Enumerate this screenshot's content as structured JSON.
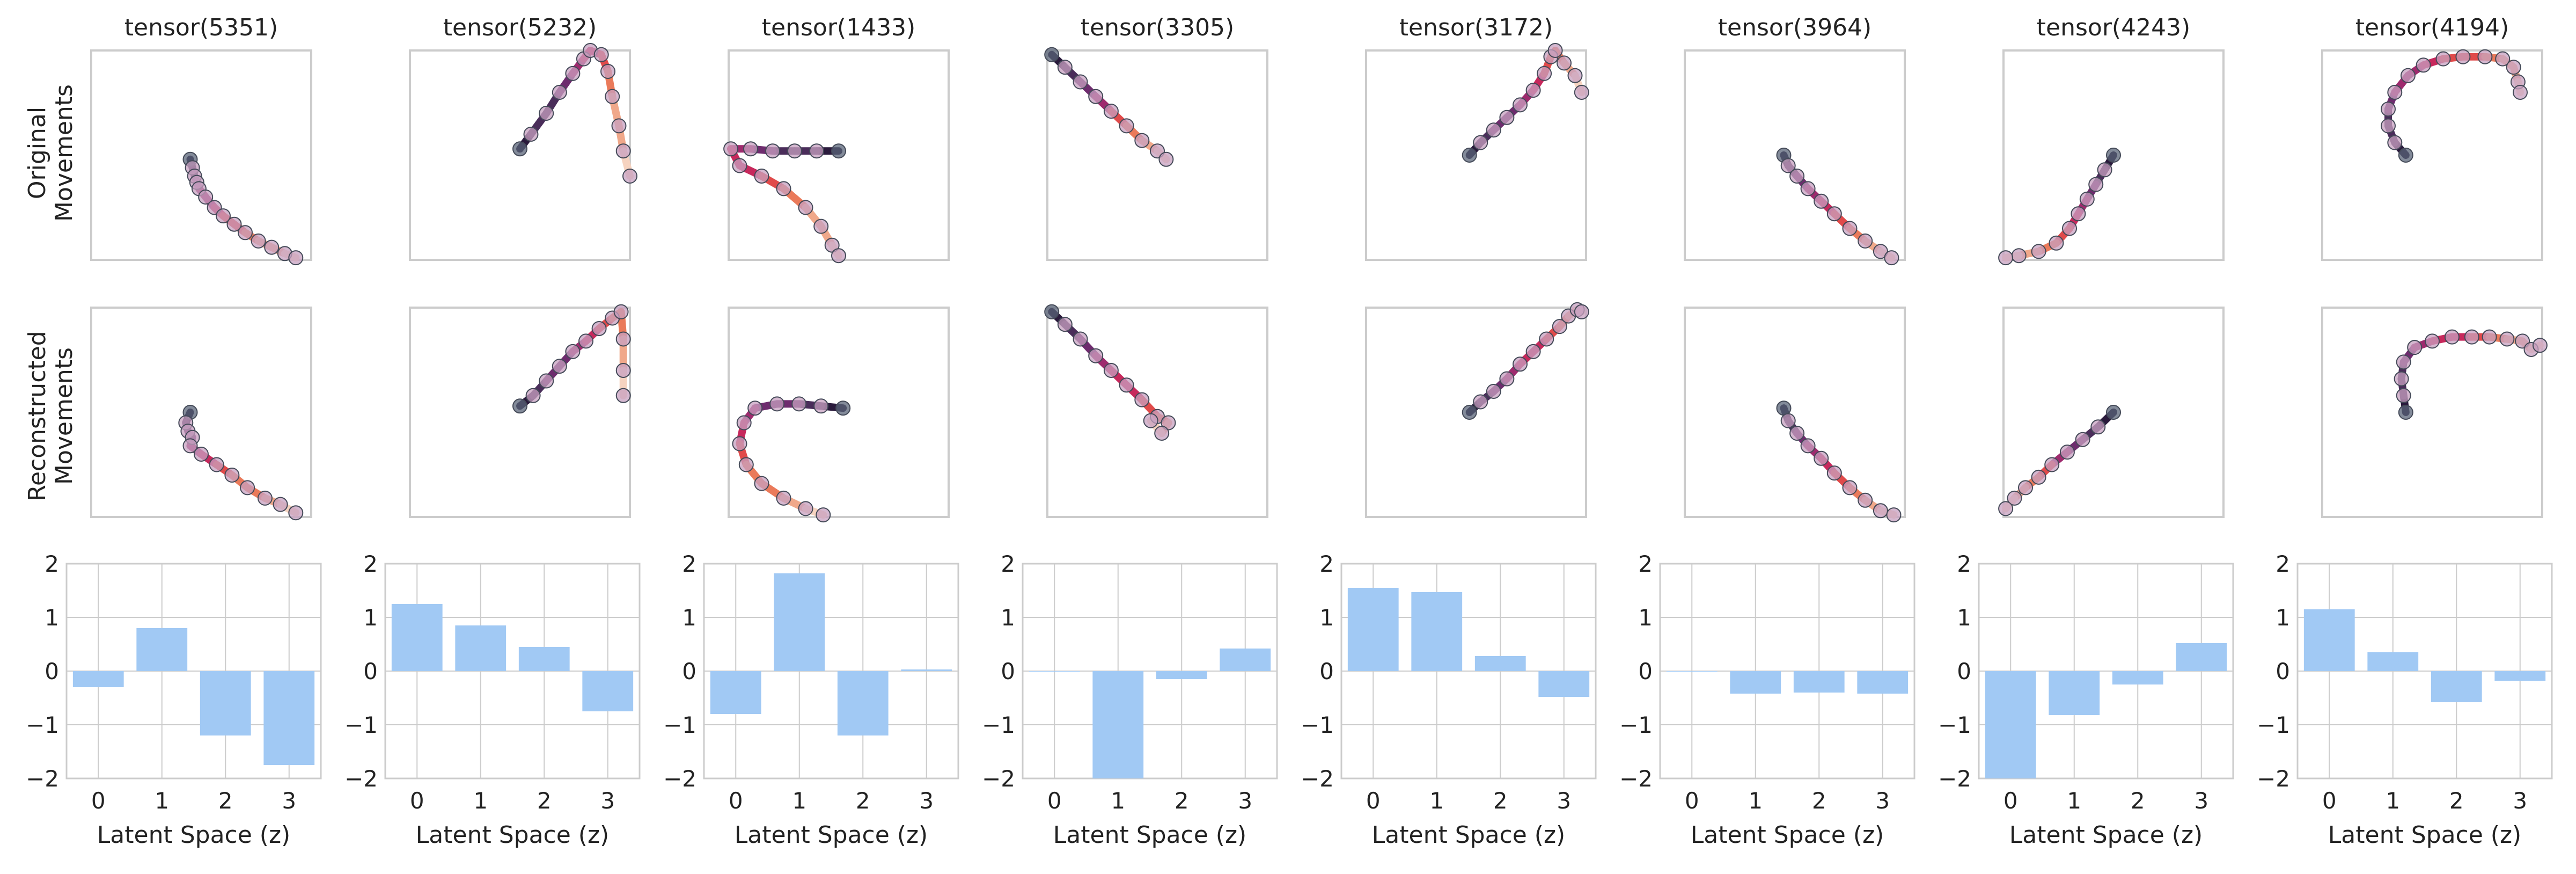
{
  "figure": {
    "row_labels": [
      [
        "Original",
        "Movements"
      ],
      [
        "Reconstructed",
        "Movements"
      ]
    ],
    "columns": [
      "tensor(5351)",
      "tensor(5232)",
      "tensor(1433)",
      "tensor(3305)",
      "tensor(3172)",
      "tensor(3964)",
      "tensor(4243)",
      "tensor(4194)"
    ]
  },
  "colors": {
    "bar": "#a1c9f4",
    "grid": "#cccccc",
    "frame": "#cccccc",
    "trajectory_palette": [
      "#2a1a3c",
      "#4a2d5a",
      "#6e2c6e",
      "#9e2a6e",
      "#c7285c",
      "#e04a4a",
      "#ea7a5a",
      "#f0a88a",
      "#f6d3c0"
    ]
  },
  "chart_data": [
    {
      "type": "line",
      "title": "tensor(5351) movements",
      "original": [
        [
          0.45,
          0.52
        ],
        [
          0.46,
          0.56
        ],
        [
          0.47,
          0.6
        ],
        [
          0.48,
          0.63
        ],
        [
          0.49,
          0.66
        ],
        [
          0.52,
          0.7
        ],
        [
          0.56,
          0.75
        ],
        [
          0.6,
          0.79
        ],
        [
          0.65,
          0.83
        ],
        [
          0.7,
          0.87
        ],
        [
          0.76,
          0.91
        ],
        [
          0.82,
          0.94
        ],
        [
          0.88,
          0.97
        ],
        [
          0.93,
          0.99
        ]
      ],
      "reconstructed": [
        [
          0.45,
          0.5
        ],
        [
          0.43,
          0.55
        ],
        [
          0.44,
          0.59
        ],
        [
          0.46,
          0.62
        ],
        [
          0.45,
          0.66
        ],
        [
          0.5,
          0.7
        ],
        [
          0.57,
          0.75
        ],
        [
          0.64,
          0.8
        ],
        [
          0.71,
          0.86
        ],
        [
          0.79,
          0.91
        ],
        [
          0.86,
          0.94
        ],
        [
          0.93,
          0.98
        ]
      ]
    },
    {
      "type": "line",
      "title": "tensor(5232) movements",
      "original": [
        [
          0.5,
          0.47
        ],
        [
          0.55,
          0.4
        ],
        [
          0.62,
          0.3
        ],
        [
          0.68,
          0.2
        ],
        [
          0.74,
          0.11
        ],
        [
          0.79,
          0.04
        ],
        [
          0.82,
          0.0
        ],
        [
          0.87,
          0.02
        ],
        [
          0.9,
          0.1
        ],
        [
          0.92,
          0.22
        ],
        [
          0.95,
          0.36
        ],
        [
          0.97,
          0.48
        ],
        [
          1.0,
          0.6
        ]
      ],
      "reconstructed": [
        [
          0.5,
          0.47
        ],
        [
          0.56,
          0.42
        ],
        [
          0.62,
          0.35
        ],
        [
          0.68,
          0.28
        ],
        [
          0.74,
          0.21
        ],
        [
          0.8,
          0.16
        ],
        [
          0.86,
          0.1
        ],
        [
          0.92,
          0.05
        ],
        [
          0.96,
          0.02
        ],
        [
          0.97,
          0.15
        ],
        [
          0.97,
          0.3
        ],
        [
          0.97,
          0.42
        ]
      ]
    },
    {
      "type": "line",
      "title": "tensor(1433) movements",
      "original": [
        [
          0.5,
          0.48
        ],
        [
          0.4,
          0.48
        ],
        [
          0.3,
          0.48
        ],
        [
          0.2,
          0.48
        ],
        [
          0.1,
          0.47
        ],
        [
          0.01,
          0.47
        ],
        [
          0.05,
          0.55
        ],
        [
          0.15,
          0.6
        ],
        [
          0.25,
          0.66
        ],
        [
          0.35,
          0.75
        ],
        [
          0.42,
          0.84
        ],
        [
          0.47,
          0.93
        ],
        [
          0.5,
          0.98
        ]
      ],
      "reconstructed": [
        [
          0.52,
          0.48
        ],
        [
          0.42,
          0.47
        ],
        [
          0.32,
          0.46
        ],
        [
          0.22,
          0.46
        ],
        [
          0.12,
          0.48
        ],
        [
          0.07,
          0.55
        ],
        [
          0.05,
          0.65
        ],
        [
          0.08,
          0.75
        ],
        [
          0.15,
          0.84
        ],
        [
          0.25,
          0.91
        ],
        [
          0.35,
          0.96
        ],
        [
          0.43,
          0.99
        ]
      ]
    },
    {
      "type": "line",
      "title": "tensor(3305) movements",
      "original": [
        [
          0.02,
          0.02
        ],
        [
          0.08,
          0.08
        ],
        [
          0.15,
          0.15
        ],
        [
          0.22,
          0.22
        ],
        [
          0.29,
          0.29
        ],
        [
          0.36,
          0.36
        ],
        [
          0.43,
          0.43
        ],
        [
          0.5,
          0.48
        ],
        [
          0.54,
          0.52
        ]
      ],
      "reconstructed": [
        [
          0.02,
          0.02
        ],
        [
          0.08,
          0.08
        ],
        [
          0.15,
          0.15
        ],
        [
          0.22,
          0.23
        ],
        [
          0.29,
          0.3
        ],
        [
          0.36,
          0.37
        ],
        [
          0.43,
          0.44
        ],
        [
          0.5,
          0.52
        ],
        [
          0.55,
          0.55
        ],
        [
          0.52,
          0.6
        ],
        [
          0.47,
          0.54
        ]
      ]
    },
    {
      "type": "line",
      "title": "tensor(3172) movements",
      "original": [
        [
          0.47,
          0.5
        ],
        [
          0.52,
          0.44
        ],
        [
          0.58,
          0.38
        ],
        [
          0.64,
          0.32
        ],
        [
          0.7,
          0.26
        ],
        [
          0.76,
          0.19
        ],
        [
          0.81,
          0.11
        ],
        [
          0.84,
          0.03
        ],
        [
          0.86,
          0.0
        ],
        [
          0.9,
          0.06
        ],
        [
          0.95,
          0.12
        ],
        [
          0.98,
          0.2
        ]
      ],
      "reconstructed": [
        [
          0.47,
          0.5
        ],
        [
          0.52,
          0.45
        ],
        [
          0.58,
          0.4
        ],
        [
          0.64,
          0.34
        ],
        [
          0.7,
          0.27
        ],
        [
          0.76,
          0.21
        ],
        [
          0.82,
          0.15
        ],
        [
          0.88,
          0.09
        ],
        [
          0.92,
          0.04
        ],
        [
          0.96,
          0.01
        ],
        [
          0.98,
          0.02
        ]
      ]
    },
    {
      "type": "line",
      "title": "tensor(3964) movements",
      "original": [
        [
          0.45,
          0.5
        ],
        [
          0.47,
          0.55
        ],
        [
          0.51,
          0.6
        ],
        [
          0.56,
          0.66
        ],
        [
          0.62,
          0.72
        ],
        [
          0.68,
          0.78
        ],
        [
          0.75,
          0.85
        ],
        [
          0.82,
          0.91
        ],
        [
          0.89,
          0.96
        ],
        [
          0.94,
          0.99
        ]
      ],
      "reconstructed": [
        [
          0.45,
          0.48
        ],
        [
          0.47,
          0.54
        ],
        [
          0.51,
          0.6
        ],
        [
          0.56,
          0.66
        ],
        [
          0.62,
          0.72
        ],
        [
          0.68,
          0.79
        ],
        [
          0.75,
          0.86
        ],
        [
          0.82,
          0.92
        ],
        [
          0.89,
          0.97
        ],
        [
          0.95,
          0.99
        ]
      ]
    },
    {
      "type": "line",
      "title": "tensor(4243) movements",
      "original": [
        [
          0.5,
          0.5
        ],
        [
          0.46,
          0.57
        ],
        [
          0.42,
          0.64
        ],
        [
          0.38,
          0.71
        ],
        [
          0.34,
          0.78
        ],
        [
          0.3,
          0.85
        ],
        [
          0.24,
          0.92
        ],
        [
          0.16,
          0.96
        ],
        [
          0.07,
          0.98
        ],
        [
          0.01,
          0.99
        ]
      ],
      "reconstructed": [
        [
          0.5,
          0.5
        ],
        [
          0.43,
          0.57
        ],
        [
          0.36,
          0.63
        ],
        [
          0.29,
          0.69
        ],
        [
          0.22,
          0.75
        ],
        [
          0.16,
          0.81
        ],
        [
          0.1,
          0.86
        ],
        [
          0.05,
          0.91
        ],
        [
          0.01,
          0.96
        ]
      ]
    },
    {
      "type": "line",
      "title": "tensor(4194) movements",
      "original": [
        [
          0.38,
          0.5
        ],
        [
          0.33,
          0.44
        ],
        [
          0.3,
          0.36
        ],
        [
          0.3,
          0.28
        ],
        [
          0.33,
          0.2
        ],
        [
          0.39,
          0.12
        ],
        [
          0.46,
          0.07
        ],
        [
          0.55,
          0.04
        ],
        [
          0.64,
          0.03
        ],
        [
          0.74,
          0.03
        ],
        [
          0.82,
          0.04
        ],
        [
          0.87,
          0.08
        ],
        [
          0.89,
          0.15
        ],
        [
          0.9,
          0.2
        ]
      ],
      "reconstructed": [
        [
          0.38,
          0.5
        ],
        [
          0.37,
          0.42
        ],
        [
          0.36,
          0.34
        ],
        [
          0.37,
          0.26
        ],
        [
          0.42,
          0.19
        ],
        [
          0.5,
          0.16
        ],
        [
          0.59,
          0.14
        ],
        [
          0.68,
          0.14
        ],
        [
          0.76,
          0.14
        ],
        [
          0.84,
          0.15
        ],
        [
          0.91,
          0.16
        ],
        [
          0.95,
          0.2
        ],
        [
          0.99,
          0.18
        ]
      ]
    },
    {
      "type": "bar",
      "title": "Latent Space (z) — tensor(5351)",
      "xlabel": "Latent Space (z)",
      "categories": [
        "0",
        "1",
        "2",
        "3"
      ],
      "values": [
        -0.3,
        0.8,
        -1.2,
        -1.75
      ],
      "ylim": [
        -2,
        2
      ],
      "yticks": [
        "2",
        "1",
        "0",
        "−1",
        "−2"
      ]
    },
    {
      "type": "bar",
      "title": "Latent Space (z) — tensor(5232)",
      "xlabel": "Latent Space (z)",
      "categories": [
        "0",
        "1",
        "2",
        "3"
      ],
      "values": [
        1.25,
        0.85,
        0.45,
        -0.75
      ],
      "ylim": [
        -2,
        2
      ],
      "yticks": [
        "2",
        "1",
        "0",
        "−1",
        "−2"
      ]
    },
    {
      "type": "bar",
      "title": "Latent Space (z) — tensor(1433)",
      "xlabel": "Latent Space (z)",
      "categories": [
        "0",
        "1",
        "2",
        "3"
      ],
      "values": [
        -0.8,
        1.82,
        -1.2,
        0.03
      ],
      "ylim": [
        -2,
        2
      ],
      "yticks": [
        "2",
        "1",
        "0",
        "−1",
        "−2"
      ]
    },
    {
      "type": "bar",
      "title": "Latent Space (z) — tensor(3305)",
      "xlabel": "Latent Space (z)",
      "categories": [
        "0",
        "1",
        "2",
        "3"
      ],
      "values": [
        0.0,
        -2.0,
        -0.15,
        0.42
      ],
      "ylim": [
        -2,
        2
      ],
      "yticks": [
        "2",
        "1",
        "0",
        "−1",
        "−2"
      ]
    },
    {
      "type": "bar",
      "title": "Latent Space (z) — tensor(3172)",
      "xlabel": "Latent Space (z)",
      "categories": [
        "0",
        "1",
        "2",
        "3"
      ],
      "values": [
        1.55,
        1.47,
        0.28,
        -0.48
      ],
      "ylim": [
        -2,
        2
      ],
      "yticks": [
        "2",
        "1",
        "0",
        "−1",
        "−2"
      ]
    },
    {
      "type": "bar",
      "title": "Latent Space (z) — tensor(3964)",
      "xlabel": "Latent Space (z)",
      "categories": [
        "0",
        "1",
        "2",
        "3"
      ],
      "values": [
        0.0,
        -0.42,
        -0.4,
        -0.42
      ],
      "ylim": [
        -2,
        2
      ],
      "yticks": [
        "2",
        "1",
        "0",
        "−1",
        "−2"
      ]
    },
    {
      "type": "bar",
      "title": "Latent Space (z) — tensor(4243)",
      "xlabel": "Latent Space (z)",
      "categories": [
        "0",
        "1",
        "2",
        "3"
      ],
      "values": [
        -2.0,
        -0.82,
        -0.25,
        0.52
      ],
      "ylim": [
        -2,
        2
      ],
      "yticks": [
        "2",
        "1",
        "0",
        "−1",
        "−2"
      ]
    },
    {
      "type": "bar",
      "title": "Latent Space (z) — tensor(4194)",
      "xlabel": "Latent Space (z)",
      "categories": [
        "0",
        "1",
        "2",
        "3"
      ],
      "values": [
        1.15,
        0.35,
        -0.58,
        -0.18
      ],
      "ylim": [
        -2,
        2
      ],
      "yticks": [
        "2",
        "1",
        "0",
        "−1",
        "−2"
      ]
    }
  ]
}
